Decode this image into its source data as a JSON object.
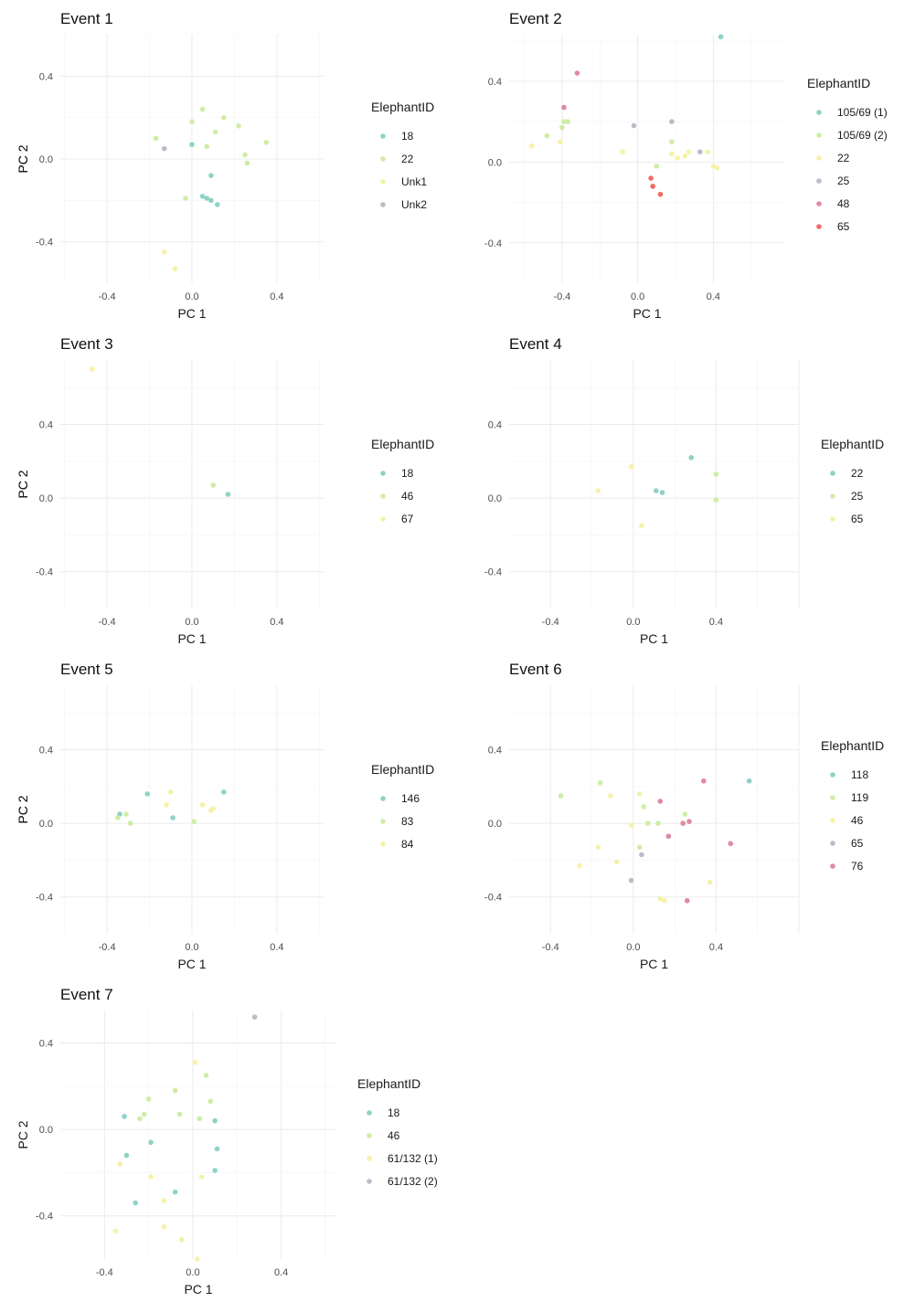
{
  "colors": {
    "palette": [
      "#8dd3c7",
      "#cfeda6",
      "#f5f2a9",
      "#bcbcc8",
      "#e08a9e",
      "#f06c62"
    ]
  },
  "chart_data": [
    {
      "type": "scatter",
      "title": "Event 1",
      "xlabel": "PC 1",
      "ylabel": "PC 2",
      "xlim": [
        -0.62,
        0.62
      ],
      "ylim": [
        -0.6,
        0.6
      ],
      "xticks": [
        {
          "value": -0.4,
          "label": "-0.4"
        },
        {
          "value": 0.0,
          "label": "0.0"
        },
        {
          "value": 0.4,
          "label": "0.4"
        }
      ],
      "yticks": [
        {
          "value": -0.4,
          "label": "-0.4"
        },
        {
          "value": 0.0,
          "label": "0.0"
        },
        {
          "value": 0.4,
          "label": "0.4"
        }
      ],
      "grid": true,
      "legend_title": "ElephantID",
      "legend_position": "right",
      "series": [
        {
          "name": "18",
          "color": "#8dd3c7",
          "points": [
            [
              0.0,
              0.07
            ],
            [
              0.09,
              -0.08
            ],
            [
              0.05,
              -0.18
            ],
            [
              0.07,
              -0.19
            ],
            [
              0.09,
              -0.2
            ],
            [
              0.12,
              -0.22
            ]
          ]
        },
        {
          "name": "22",
          "color": "#cfeda6",
          "points": [
            [
              -0.17,
              0.1
            ],
            [
              0.0,
              0.18
            ],
            [
              0.05,
              0.24
            ],
            [
              0.07,
              0.06
            ],
            [
              0.11,
              0.13
            ],
            [
              0.15,
              0.2
            ],
            [
              0.22,
              0.16
            ],
            [
              0.25,
              0.02
            ],
            [
              0.26,
              -0.02
            ],
            [
              0.35,
              0.08
            ],
            [
              -0.03,
              -0.19
            ]
          ]
        },
        {
          "name": "Unk1",
          "color": "#f5f2a9",
          "points": [
            [
              -0.13,
              -0.45
            ],
            [
              -0.08,
              -0.53
            ]
          ]
        },
        {
          "name": "Unk2",
          "color": "#bcbcc8",
          "points": [
            [
              -0.13,
              0.05
            ]
          ]
        }
      ]
    },
    {
      "type": "scatter",
      "title": "Event 2",
      "xlabel": "PC 1",
      "ylabel": "PC 2",
      "xlim": [
        -0.68,
        0.78
      ],
      "ylim": [
        -0.6,
        0.63
      ],
      "xticks": [
        {
          "value": -0.4,
          "label": "-0.4"
        },
        {
          "value": 0.0,
          "label": "0.0"
        },
        {
          "value": 0.4,
          "label": "0.4"
        }
      ],
      "yticks": [
        {
          "value": -0.4,
          "label": "-0.4"
        },
        {
          "value": 0.0,
          "label": "0.0"
        },
        {
          "value": 0.4,
          "label": "0.4"
        }
      ],
      "grid": true,
      "legend_title": "ElephantID",
      "legend_position": "right",
      "series": [
        {
          "name": "105/69 (1)",
          "color": "#8dd3c7",
          "points": [
            [
              0.44,
              0.62
            ]
          ]
        },
        {
          "name": "105/69 (2)",
          "color": "#cfeda6",
          "points": [
            [
              -0.39,
              0.2
            ],
            [
              -0.4,
              0.17
            ],
            [
              -0.37,
              0.2
            ],
            [
              -0.48,
              0.13
            ],
            [
              0.18,
              0.1
            ],
            [
              0.1,
              -0.02
            ]
          ]
        },
        {
          "name": "22",
          "color": "#f5f2a9",
          "points": [
            [
              -0.56,
              0.08
            ],
            [
              -0.41,
              0.1
            ],
            [
              -0.08,
              0.05
            ],
            [
              0.18,
              0.04
            ],
            [
              0.21,
              0.02
            ],
            [
              0.27,
              0.05
            ],
            [
              0.37,
              0.05
            ],
            [
              0.4,
              -0.02
            ],
            [
              0.42,
              -0.03
            ],
            [
              0.25,
              0.03
            ]
          ]
        },
        {
          "name": "25",
          "color": "#bcbcc8",
          "points": [
            [
              -0.02,
              0.18
            ],
            [
              0.18,
              0.2
            ],
            [
              0.33,
              0.05
            ]
          ]
        },
        {
          "name": "48",
          "color": "#e08a9e",
          "points": [
            [
              -0.32,
              0.44
            ],
            [
              -0.39,
              0.27
            ]
          ]
        },
        {
          "name": "65",
          "color": "#f06c62",
          "points": [
            [
              0.07,
              -0.08
            ],
            [
              0.08,
              -0.12
            ],
            [
              0.12,
              -0.16
            ]
          ]
        }
      ]
    },
    {
      "type": "scatter",
      "title": "Event 3",
      "xlabel": "PC 1",
      "ylabel": "PC 2",
      "xlim": [
        -0.62,
        0.62
      ],
      "ylim": [
        -0.6,
        0.75
      ],
      "xticks": [
        {
          "value": -0.4,
          "label": "-0.4"
        },
        {
          "value": 0.0,
          "label": "0.0"
        },
        {
          "value": 0.4,
          "label": "0.4"
        }
      ],
      "yticks": [
        {
          "value": -0.4,
          "label": "-0.4"
        },
        {
          "value": 0.0,
          "label": "0.0"
        },
        {
          "value": 0.4,
          "label": "0.4"
        }
      ],
      "grid": true,
      "legend_title": "ElephantID",
      "legend_position": "right",
      "series": [
        {
          "name": "18",
          "color": "#8dd3c7",
          "points": [
            [
              0.17,
              0.02
            ]
          ]
        },
        {
          "name": "46",
          "color": "#cfeda6",
          "points": [
            [
              0.1,
              0.07
            ]
          ]
        },
        {
          "name": "67",
          "color": "#f5f2a9",
          "points": [
            [
              -0.47,
              0.7
            ]
          ]
        }
      ]
    },
    {
      "type": "scatter",
      "title": "Event 4",
      "xlabel": "PC 1",
      "ylabel": "PC 2",
      "xlim": [
        -0.6,
        0.8
      ],
      "ylim": [
        -0.6,
        0.75
      ],
      "xticks": [
        {
          "value": -0.4,
          "label": "-0.4"
        },
        {
          "value": 0.0,
          "label": "0.0"
        },
        {
          "value": 0.4,
          "label": "0.4"
        }
      ],
      "yticks": [
        {
          "value": -0.4,
          "label": "-0.4"
        },
        {
          "value": 0.0,
          "label": "0.0"
        },
        {
          "value": 0.4,
          "label": "0.4"
        }
      ],
      "grid": true,
      "legend_title": "ElephantID",
      "legend_position": "right",
      "series": [
        {
          "name": "22",
          "color": "#8dd3c7",
          "points": [
            [
              0.28,
              0.22
            ],
            [
              0.11,
              0.04
            ],
            [
              0.14,
              0.03
            ]
          ]
        },
        {
          "name": "25",
          "color": "#cfeda6",
          "points": [
            [
              0.4,
              0.13
            ],
            [
              0.4,
              -0.01
            ]
          ]
        },
        {
          "name": "65",
          "color": "#f5f2a9",
          "points": [
            [
              -0.01,
              0.17
            ],
            [
              -0.17,
              0.04
            ],
            [
              0.04,
              -0.15
            ]
          ]
        }
      ]
    },
    {
      "type": "scatter",
      "title": "Event 5",
      "xlabel": "PC 1",
      "ylabel": "PC 2",
      "xlim": [
        -0.62,
        0.62
      ],
      "ylim": [
        -0.6,
        0.75
      ],
      "xticks": [
        {
          "value": -0.4,
          "label": "-0.4"
        },
        {
          "value": 0.0,
          "label": "0.0"
        },
        {
          "value": 0.4,
          "label": "0.4"
        }
      ],
      "yticks": [
        {
          "value": -0.4,
          "label": "-0.4"
        },
        {
          "value": 0.0,
          "label": "0.0"
        },
        {
          "value": 0.4,
          "label": "0.4"
        }
      ],
      "grid": true,
      "legend_title": "ElephantID",
      "legend_position": "right",
      "series": [
        {
          "name": "146",
          "color": "#8dd3c7",
          "points": [
            [
              -0.34,
              0.05
            ],
            [
              -0.21,
              0.16
            ],
            [
              -0.09,
              0.03
            ],
            [
              0.15,
              0.17
            ]
          ]
        },
        {
          "name": "83",
          "color": "#cfeda6",
          "points": [
            [
              -0.35,
              0.03
            ],
            [
              -0.31,
              0.05
            ],
            [
              -0.29,
              0.0
            ],
            [
              0.01,
              0.01
            ]
          ]
        },
        {
          "name": "84",
          "color": "#f5f2a9",
          "points": [
            [
              -0.1,
              0.17
            ],
            [
              -0.12,
              0.1
            ],
            [
              0.05,
              0.1
            ],
            [
              0.09,
              0.07
            ],
            [
              0.1,
              0.08
            ]
          ]
        }
      ]
    },
    {
      "type": "scatter",
      "title": "Event 6",
      "xlabel": "PC 1",
      "ylabel": "PC 2",
      "xlim": [
        -0.6,
        0.8
      ],
      "ylim": [
        -0.6,
        0.75
      ],
      "xticks": [
        {
          "value": -0.4,
          "label": "-0.4"
        },
        {
          "value": 0.0,
          "label": "0.0"
        },
        {
          "value": 0.4,
          "label": "0.4"
        }
      ],
      "yticks": [
        {
          "value": -0.4,
          "label": "-0.4"
        },
        {
          "value": 0.0,
          "label": "0.0"
        },
        {
          "value": 0.4,
          "label": "0.4"
        }
      ],
      "grid": true,
      "legend_title": "ElephantID",
      "legend_position": "right",
      "series": [
        {
          "name": "118",
          "color": "#8dd3c7",
          "points": [
            [
              0.56,
              0.23
            ]
          ]
        },
        {
          "name": "119",
          "color": "#cfeda6",
          "points": [
            [
              -0.35,
              0.15
            ],
            [
              -0.16,
              0.22
            ],
            [
              0.05,
              0.09
            ],
            [
              0.07,
              0.0
            ],
            [
              0.12,
              0.0
            ],
            [
              0.03,
              -0.13
            ],
            [
              0.25,
              0.05
            ]
          ]
        },
        {
          "name": "46",
          "color": "#f5f2a9",
          "points": [
            [
              -0.11,
              0.15
            ],
            [
              0.03,
              0.16
            ],
            [
              -0.17,
              -0.13
            ],
            [
              -0.26,
              -0.23
            ],
            [
              -0.08,
              -0.21
            ],
            [
              0.13,
              -0.41
            ],
            [
              0.15,
              -0.42
            ],
            [
              0.37,
              -0.32
            ],
            [
              -0.01,
              -0.01
            ]
          ]
        },
        {
          "name": "65",
          "color": "#bcbcc8",
          "points": [
            [
              0.04,
              -0.17
            ],
            [
              -0.01,
              -0.31
            ]
          ]
        },
        {
          "name": "76",
          "color": "#e08a9e",
          "points": [
            [
              0.13,
              0.12
            ],
            [
              0.34,
              0.23
            ],
            [
              0.24,
              0.0
            ],
            [
              0.27,
              0.01
            ],
            [
              0.17,
              -0.07
            ],
            [
              0.47,
              -0.11
            ],
            [
              0.26,
              -0.42
            ]
          ]
        }
      ]
    },
    {
      "type": "scatter",
      "title": "Event 7",
      "xlabel": "PC 1",
      "ylabel": "PC 2",
      "xlim": [
        -0.6,
        0.65
      ],
      "ylim": [
        -0.6,
        0.55
      ],
      "xticks": [
        {
          "value": -0.4,
          "label": "-0.4"
        },
        {
          "value": 0.0,
          "label": "0.0"
        },
        {
          "value": 0.4,
          "label": "0.4"
        }
      ],
      "yticks": [
        {
          "value": -0.4,
          "label": "-0.4"
        },
        {
          "value": 0.0,
          "label": "0.0"
        },
        {
          "value": 0.4,
          "label": "0.4"
        }
      ],
      "grid": true,
      "legend_title": "ElephantID",
      "legend_position": "right",
      "series": [
        {
          "name": "18",
          "color": "#8dd3c7",
          "points": [
            [
              -0.31,
              0.06
            ],
            [
              -0.3,
              -0.12
            ],
            [
              -0.26,
              -0.34
            ],
            [
              -0.19,
              -0.06
            ],
            [
              -0.08,
              -0.29
            ],
            [
              0.1,
              0.04
            ],
            [
              0.11,
              -0.09
            ],
            [
              0.1,
              -0.19
            ]
          ]
        },
        {
          "name": "46",
          "color": "#cfeda6",
          "points": [
            [
              -0.24,
              0.05
            ],
            [
              -0.22,
              0.07
            ],
            [
              -0.2,
              0.14
            ],
            [
              -0.08,
              0.18
            ],
            [
              -0.06,
              0.07
            ],
            [
              0.03,
              0.05
            ],
            [
              0.06,
              0.25
            ],
            [
              0.08,
              0.13
            ]
          ]
        },
        {
          "name": "61/132 (1)",
          "color": "#f5f2a9",
          "points": [
            [
              -0.33,
              -0.16
            ],
            [
              -0.35,
              -0.47
            ],
            [
              -0.19,
              -0.22
            ],
            [
              -0.13,
              -0.33
            ],
            [
              -0.13,
              -0.45
            ],
            [
              -0.05,
              -0.51
            ],
            [
              0.02,
              -0.6
            ],
            [
              0.04,
              -0.22
            ],
            [
              0.01,
              0.31
            ]
          ]
        },
        {
          "name": "61/132 (2)",
          "color": "#bcbcc8",
          "points": [
            [
              0.28,
              0.52
            ]
          ]
        }
      ]
    }
  ]
}
